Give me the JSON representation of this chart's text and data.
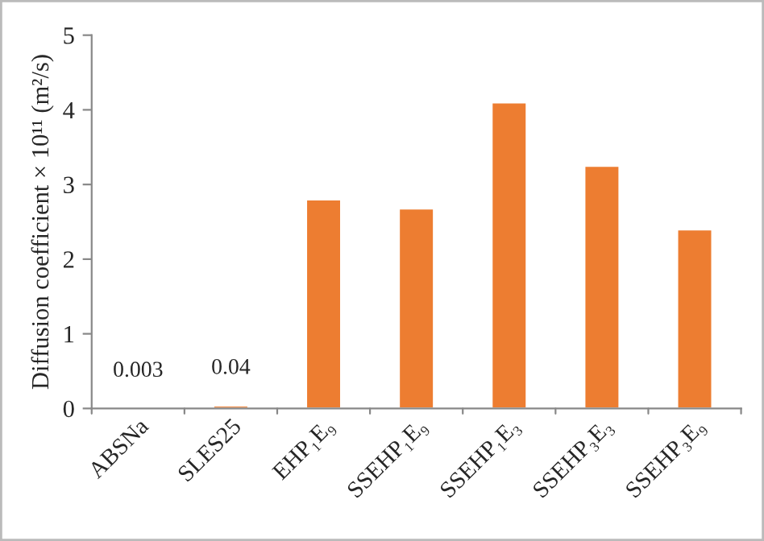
{
  "chart_data": {
    "type": "bar",
    "ylabel": "Diffusion coefficient × 10¹¹ (m²/s)",
    "categories": [
      "ABSNa",
      "SLES25",
      "EHP₁E₉",
      "SSEHP₁E₉",
      "SSEHP₁E₃",
      "SSEHP₃E₃",
      "SSEHP₃E₉"
    ],
    "values": [
      0.003,
      0.04,
      2.8,
      2.68,
      4.1,
      3.25,
      2.4
    ],
    "value_labels": [
      "0.003",
      "0.04",
      null,
      null,
      null,
      null,
      null
    ],
    "color": "#ed7d31",
    "ylim": [
      0,
      5
    ],
    "yticks": [
      0,
      1,
      2,
      3,
      4,
      5
    ],
    "grid": false
  }
}
